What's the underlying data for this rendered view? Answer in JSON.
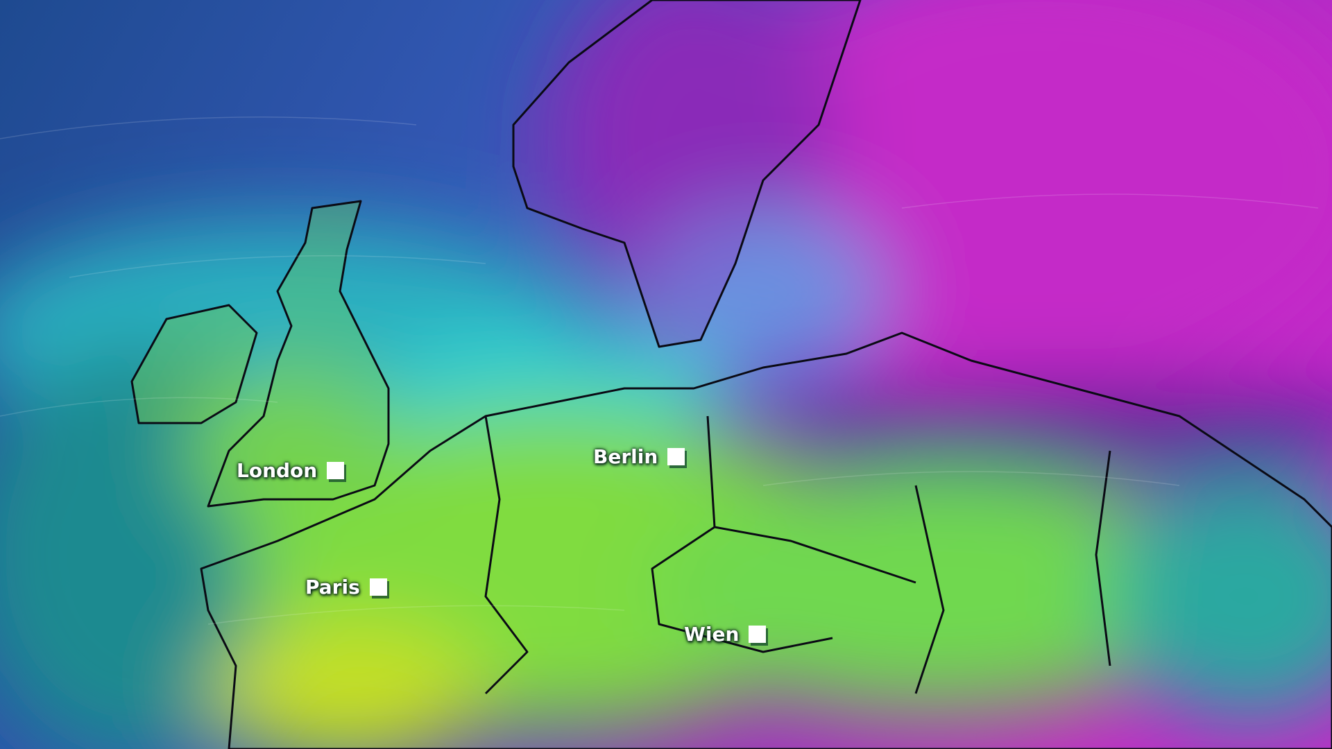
{
  "map": {
    "cities": [
      {
        "name": "London"
      },
      {
        "name": "Berlin"
      },
      {
        "name": "Paris"
      },
      {
        "name": "Wien"
      }
    ],
    "colors": {
      "cold": "#b020c0",
      "cool": "#6a88e0",
      "mild": "#30c8c8",
      "warm": "#80e040",
      "warmest": "#c8e020"
    }
  }
}
